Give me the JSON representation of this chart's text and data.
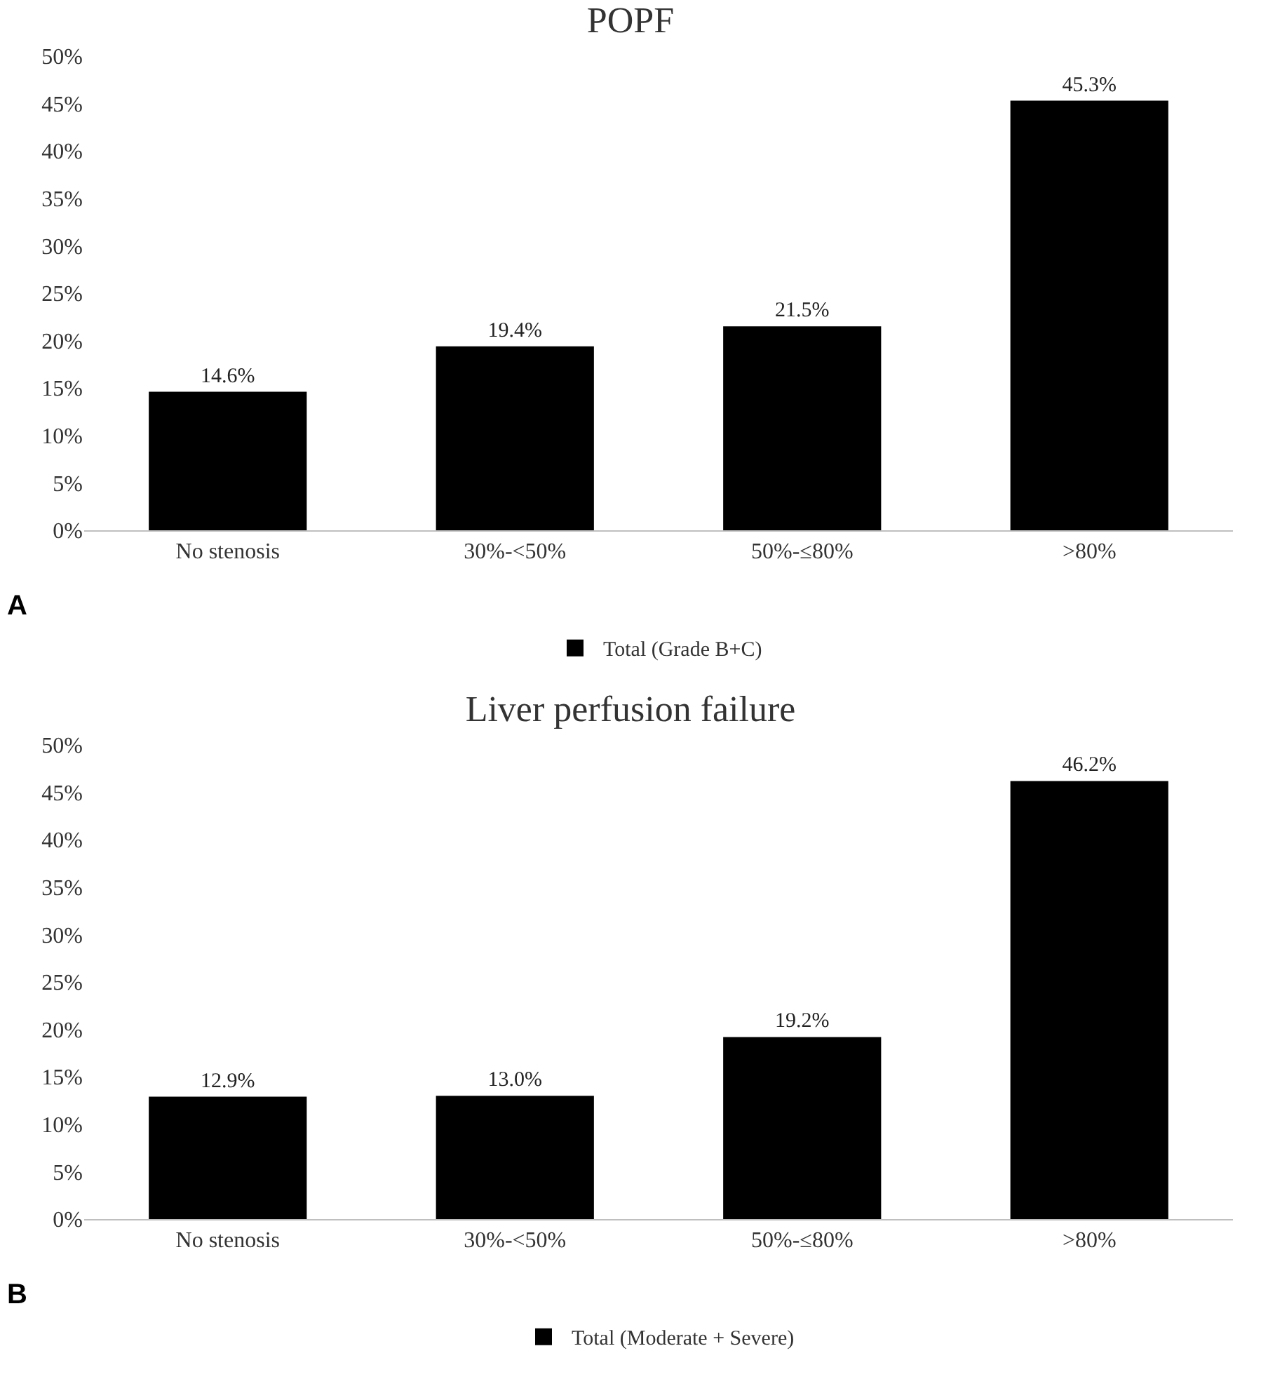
{
  "chart_data": [
    {
      "type": "bar",
      "title": "POPF",
      "categories": [
        "No stenosis",
        "30%-<50%",
        "50%-≤80%",
        ">80%"
      ],
      "series": [
        {
          "name": "Total (Grade B+C)",
          "color": "#000000",
          "values": [
            14.6,
            19.4,
            21.5,
            45.3
          ],
          "value_labels": [
            "14.6%",
            "19.4%",
            "21.5%",
            "45.3%"
          ]
        }
      ],
      "ylim": [
        0,
        50
      ],
      "yticks": [
        {
          "value": 0,
          "label": "0%"
        },
        {
          "value": 5,
          "label": "5%"
        },
        {
          "value": 10,
          "label": "10%"
        },
        {
          "value": 15,
          "label": "15%"
        },
        {
          "value": 20,
          "label": "20%"
        },
        {
          "value": 25,
          "label": "25%"
        },
        {
          "value": 30,
          "label": "30%"
        },
        {
          "value": 35,
          "label": "35%"
        },
        {
          "value": 40,
          "label": "40%"
        },
        {
          "value": 45,
          "label": "45%"
        },
        {
          "value": 50,
          "label": "50%"
        }
      ],
      "grid": false,
      "legend": "bottom",
      "annotations": [
        "A"
      ]
    },
    {
      "type": "bar",
      "title": "Liver perfusion failure",
      "categories": [
        "No stenosis",
        "30%-<50%",
        "50%-≤80%",
        ">80%"
      ],
      "series": [
        {
          "name": "Total (Moderate + Severe)",
          "color": "#000000",
          "values": [
            12.9,
            13.0,
            19.2,
            46.2
          ],
          "value_labels": [
            "12.9%",
            "13.0%",
            "19.2%",
            "46.2%"
          ]
        }
      ],
      "ylim": [
        0,
        50
      ],
      "yticks": [
        {
          "value": 0,
          "label": "0%"
        },
        {
          "value": 5,
          "label": "5%"
        },
        {
          "value": 10,
          "label": "10%"
        },
        {
          "value": 15,
          "label": "15%"
        },
        {
          "value": 20,
          "label": "20%"
        },
        {
          "value": 25,
          "label": "25%"
        },
        {
          "value": 30,
          "label": "30%"
        },
        {
          "value": 35,
          "label": "35%"
        },
        {
          "value": 40,
          "label": "40%"
        },
        {
          "value": 45,
          "label": "45%"
        },
        {
          "value": 50,
          "label": "50%"
        }
      ],
      "grid": false,
      "legend": "bottom",
      "annotations": [
        "B"
      ]
    }
  ]
}
